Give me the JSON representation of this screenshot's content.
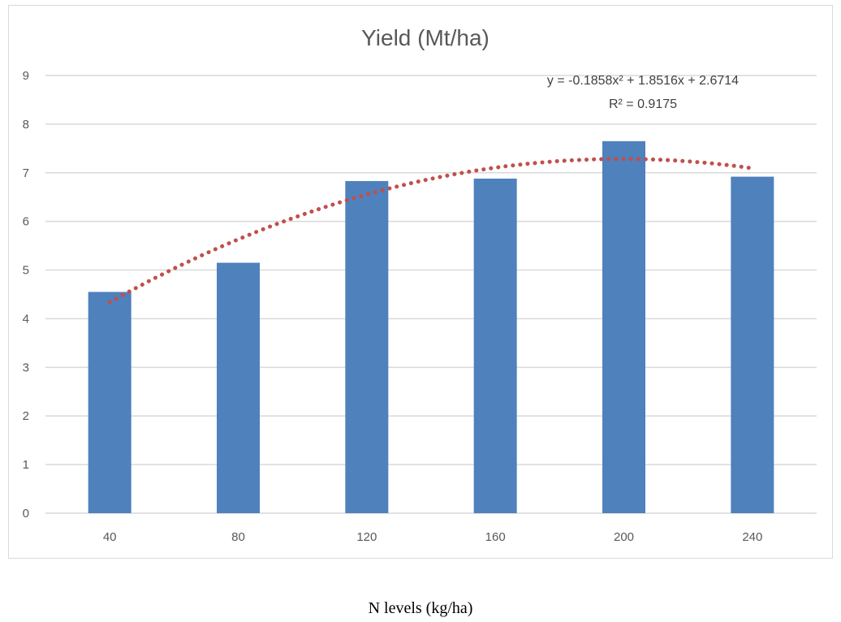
{
  "chart_data": {
    "type": "bar",
    "title": "Yield (Mt/ha)",
    "xlabel": "N levels (kg/ha)",
    "ylabel": "",
    "categories": [
      "40",
      "80",
      "120",
      "160",
      "200",
      "240"
    ],
    "series": [
      {
        "values": [
          4.55,
          5.15,
          6.83,
          6.88,
          7.65,
          6.92
        ]
      }
    ],
    "ylim": [
      0,
      9
    ],
    "yticks": [
      "0",
      "1",
      "2",
      "3",
      "4",
      "5",
      "6",
      "7",
      "8",
      "9"
    ],
    "grid": true,
    "trendline": {
      "type": "polynomial-2",
      "coefficients": [
        -0.1858,
        1.8516,
        2.6714
      ],
      "equation": "y = -0.1858x² + 1.8516x + 2.6714",
      "r2": "R² = 0.9175"
    }
  },
  "colors": {
    "bar": "#4f81bd",
    "trend": "#c0504d",
    "grid": "#d9d9d9",
    "text": "#595959"
  }
}
